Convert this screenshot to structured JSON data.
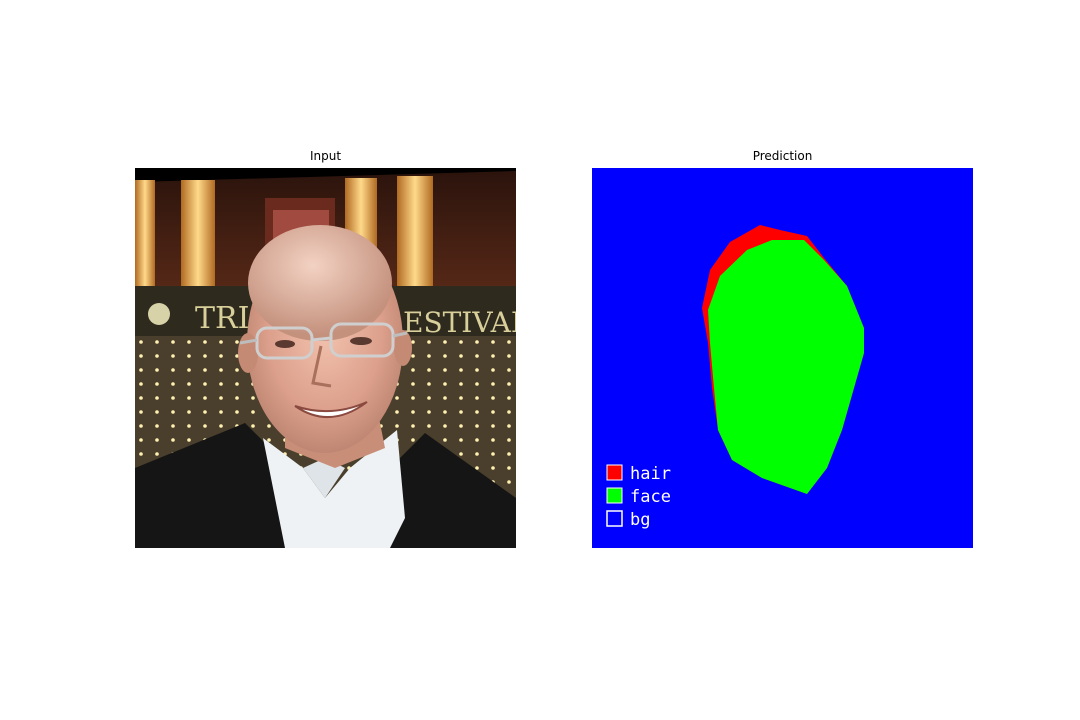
{
  "panels": {
    "input": {
      "title": "Input"
    },
    "prediction": {
      "title": "Prediction"
    }
  },
  "photo_text": {
    "sign_left": "TRI",
    "sign_right": "ESTIVAL"
  },
  "legend": {
    "items": [
      {
        "label": "hair",
        "color": "#ff0000"
      },
      {
        "label": "face",
        "color": "#00ff00"
      },
      {
        "label": "bg",
        "color": "#0000ff"
      }
    ]
  },
  "colors": {
    "background_class": "#0000ff",
    "hair_class": "#ff0000",
    "face_class": "#00ff00"
  }
}
